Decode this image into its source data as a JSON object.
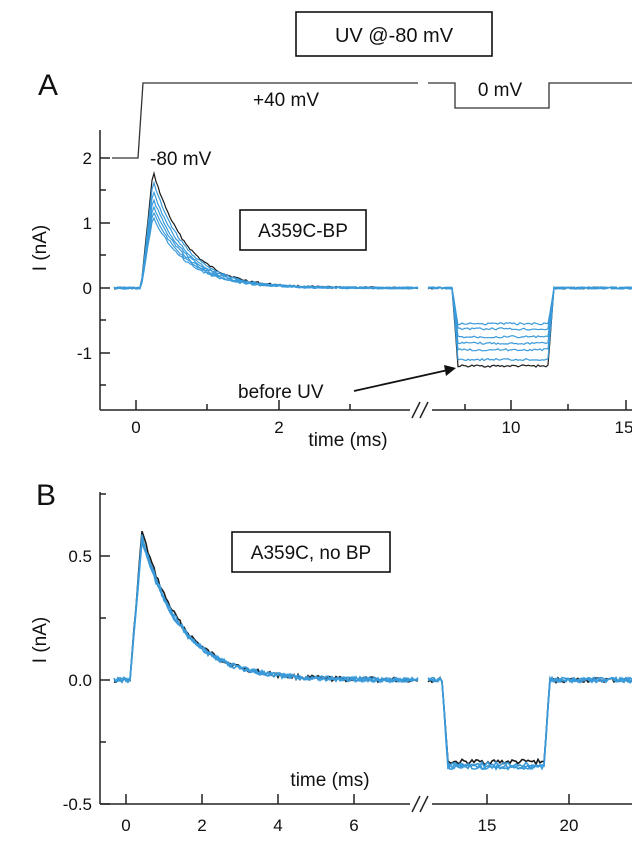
{
  "header": {
    "uv_label": "UV @-80 mV"
  },
  "colors": {
    "black_trace": "#1a1a1a",
    "uv_trace": "#3a9ad9",
    "uv_text": "#3a9ad9"
  },
  "chart_data": [
    {
      "panel": "A",
      "type": "line",
      "protocol_labels": {
        "hold": "-80 mV",
        "step1": "+40 mV",
        "step2": "0 mV"
      },
      "annotation_box": "A359C-BP",
      "arrow_label": "before UV",
      "xlabel": "time (ms)",
      "ylabel": "I (nA)",
      "x_ticks": [
        "0",
        "2",
        "10",
        "15"
      ],
      "y_ticks": [
        "2",
        "1",
        "0",
        "-1"
      ],
      "ylim": [
        -1.9,
        2.2
      ],
      "axis_break": true,
      "step_segments": [
        {
          "segment": "+40 mV",
          "x_range_ms": [
            0,
            4.2
          ]
        },
        {
          "segment": "0 mV",
          "x_range_ms": [
            7.8,
            12.0
          ]
        }
      ],
      "series": [
        {
          "color": "black",
          "peak": 1.8,
          "plateau": -1.2
        },
        {
          "color": "blue",
          "peak": 1.65,
          "plateau": -1.1
        },
        {
          "color": "blue",
          "peak": 1.5,
          "plateau": -0.95
        },
        {
          "color": "blue",
          "peak": 1.38,
          "plateau": -0.85
        },
        {
          "color": "blue",
          "peak": 1.27,
          "plateau": -0.75
        },
        {
          "color": "blue",
          "peak": 1.18,
          "plateau": -0.63
        },
        {
          "color": "blue",
          "peak": 1.1,
          "plateau": -0.55
        }
      ]
    },
    {
      "panel": "B",
      "type": "line",
      "annotation_box": "A359C, no BP",
      "xlabel": "time (ms)",
      "ylabel": "I (nA)",
      "x_ticks": [
        "0",
        "2",
        "4",
        "6",
        "15",
        "20"
      ],
      "y_ticks": [
        "0.5",
        "0.0",
        "-0.5"
      ],
      "ylim": [
        -0.5,
        0.75
      ],
      "axis_break": true,
      "series": [
        {
          "color": "black",
          "peak": 0.6,
          "plateau": -0.33
        },
        {
          "color": "blue",
          "peak": 0.58,
          "plateau": -0.34
        },
        {
          "color": "blue",
          "peak": 0.57,
          "plateau": -0.35
        },
        {
          "color": "blue",
          "peak": 0.56,
          "plateau": -0.35
        }
      ]
    }
  ]
}
